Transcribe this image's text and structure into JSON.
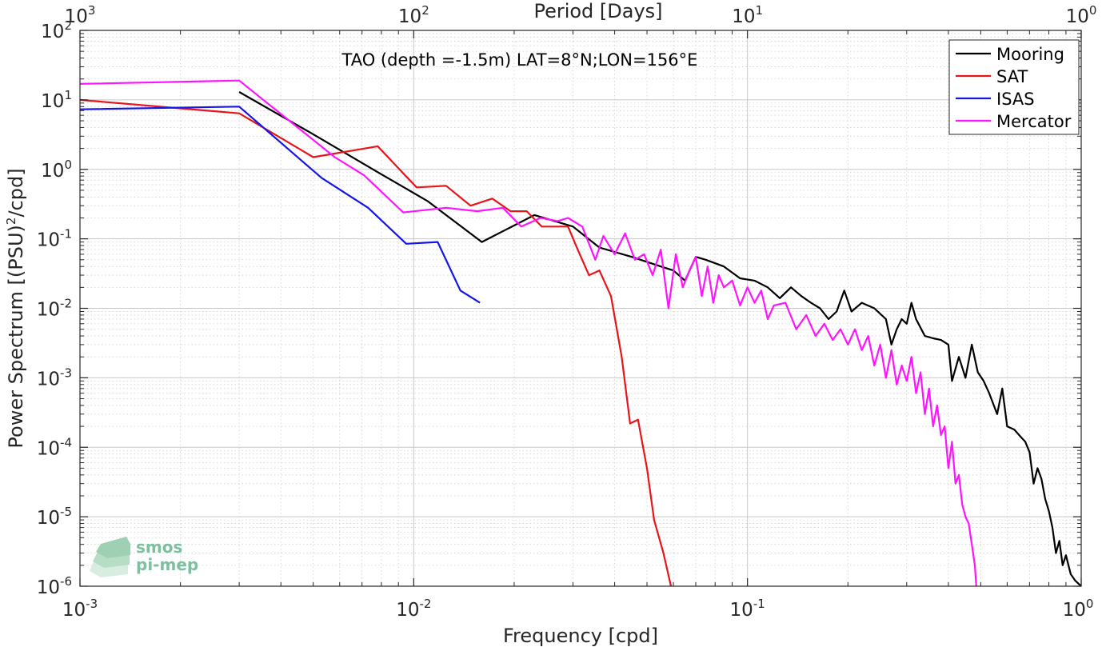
{
  "chart_data": {
    "type": "line",
    "title": "TAO (depth =-1.5m) LAT=8°N;LON=156°E",
    "xlabel": "Frequency [cpd]",
    "ylabel": "Power Spectrum [(PSU)²/cpd]",
    "ylabel_parts": {
      "pre": "Power Spectrum [(PSU)",
      "sup": "2",
      "post": "/cpd]"
    },
    "top_xlabel": "Period [Days]",
    "xscale": "log",
    "yscale": "log",
    "xlim": [
      0.001,
      1
    ],
    "ylim": [
      1e-06,
      100
    ],
    "grid": true,
    "legend_location": "top-right",
    "x_ticks": [
      {
        "v": 0.001,
        "base": "10",
        "exp": "-3"
      },
      {
        "v": 0.01,
        "base": "10",
        "exp": "-2"
      },
      {
        "v": 0.1,
        "base": "10",
        "exp": "-1"
      },
      {
        "v": 1,
        "base": "10",
        "exp": "0"
      }
    ],
    "y_ticks": [
      {
        "v": 100,
        "base": "10",
        "exp": "2"
      },
      {
        "v": 10,
        "base": "10",
        "exp": "1"
      },
      {
        "v": 1,
        "base": "10",
        "exp": "0"
      },
      {
        "v": 0.1,
        "base": "10",
        "exp": "-1"
      },
      {
        "v": 0.01,
        "base": "10",
        "exp": "-2"
      },
      {
        "v": 0.001,
        "base": "10",
        "exp": "-3"
      },
      {
        "v": 0.0001,
        "base": "10",
        "exp": "-4"
      },
      {
        "v": 1e-05,
        "base": "10",
        "exp": "-5"
      },
      {
        "v": 1e-06,
        "base": "10",
        "exp": "-6"
      }
    ],
    "top_ticks": [
      {
        "v": 1000,
        "base": "10",
        "exp": "3"
      },
      {
        "v": 100,
        "base": "10",
        "exp": "2"
      },
      {
        "v": 10,
        "base": "10",
        "exp": "1"
      },
      {
        "v": 1,
        "base": "10",
        "exp": "0"
      }
    ],
    "series": [
      {
        "name": "Mooring",
        "color": "#000000",
        "points": [
          [
            0.003,
            13
          ],
          [
            0.005,
            3.2
          ],
          [
            0.008,
            0.85
          ],
          [
            0.011,
            0.35
          ],
          [
            0.016,
            0.09
          ],
          [
            0.023,
            0.22
          ],
          [
            0.03,
            0.15
          ],
          [
            0.036,
            0.075
          ],
          [
            0.045,
            0.055
          ],
          [
            0.055,
            0.04
          ],
          [
            0.06,
            0.035
          ],
          [
            0.065,
            0.025
          ],
          [
            0.07,
            0.055
          ],
          [
            0.075,
            0.05
          ],
          [
            0.085,
            0.04
          ],
          [
            0.095,
            0.027
          ],
          [
            0.105,
            0.025
          ],
          [
            0.115,
            0.02
          ],
          [
            0.125,
            0.014
          ],
          [
            0.135,
            0.02
          ],
          [
            0.145,
            0.015
          ],
          [
            0.155,
            0.012
          ],
          [
            0.165,
            0.01
          ],
          [
            0.175,
            0.007
          ],
          [
            0.185,
            0.009
          ],
          [
            0.195,
            0.018
          ],
          [
            0.205,
            0.009
          ],
          [
            0.22,
            0.012
          ],
          [
            0.24,
            0.01
          ],
          [
            0.26,
            0.007
          ],
          [
            0.27,
            0.003
          ],
          [
            0.28,
            0.005
          ],
          [
            0.29,
            0.007
          ],
          [
            0.3,
            0.006
          ],
          [
            0.31,
            0.012
          ],
          [
            0.32,
            0.007
          ],
          [
            0.34,
            0.004
          ],
          [
            0.36,
            0.0037
          ],
          [
            0.38,
            0.0035
          ],
          [
            0.4,
            0.003
          ],
          [
            0.41,
            0.0009
          ],
          [
            0.43,
            0.002
          ],
          [
            0.45,
            0.001
          ],
          [
            0.47,
            0.003
          ],
          [
            0.49,
            0.0012
          ],
          [
            0.51,
            0.0009
          ],
          [
            0.53,
            0.0006
          ],
          [
            0.56,
            0.0003
          ],
          [
            0.58,
            0.0007
          ],
          [
            0.6,
            0.0002
          ],
          [
            0.63,
            0.00018
          ],
          [
            0.66,
            0.00014
          ],
          [
            0.68,
            0.00012
          ],
          [
            0.7,
            8.5e-05
          ],
          [
            0.72,
            3e-05
          ],
          [
            0.74,
            5e-05
          ],
          [
            0.76,
            3.5e-05
          ],
          [
            0.78,
            1.8e-05
          ],
          [
            0.8,
            1.2e-05
          ],
          [
            0.82,
            7e-06
          ],
          [
            0.84,
            3e-06
          ],
          [
            0.86,
            4.5e-06
          ],
          [
            0.88,
            2e-06
          ],
          [
            0.9,
            2.8e-06
          ],
          [
            0.93,
            1.5e-06
          ],
          [
            0.96,
            1.2e-06
          ],
          [
            1.0,
            1e-06
          ]
        ]
      },
      {
        "name": "SAT",
        "color": "#e8141a",
        "points": [
          [
            0.001,
            10
          ],
          [
            0.003,
            6.4
          ],
          [
            0.005,
            1.5
          ],
          [
            0.0078,
            2.15
          ],
          [
            0.0102,
            0.55
          ],
          [
            0.0125,
            0.58
          ],
          [
            0.0148,
            0.3
          ],
          [
            0.0172,
            0.38
          ],
          [
            0.0195,
            0.25
          ],
          [
            0.0218,
            0.25
          ],
          [
            0.0242,
            0.15
          ],
          [
            0.0265,
            0.15
          ],
          [
            0.029,
            0.15
          ],
          [
            0.031,
            0.07
          ],
          [
            0.0335,
            0.03
          ],
          [
            0.036,
            0.035
          ],
          [
            0.039,
            0.015
          ],
          [
            0.042,
            0.002
          ],
          [
            0.0445,
            0.00022
          ],
          [
            0.047,
            0.00025
          ],
          [
            0.05,
            5e-05
          ],
          [
            0.0525,
            9e-06
          ],
          [
            0.056,
            3e-06
          ],
          [
            0.059,
            1e-06
          ]
        ]
      },
      {
        "name": "ISAS",
        "color": "#1515e8",
        "points": [
          [
            0.001,
            7.3
          ],
          [
            0.003,
            8
          ],
          [
            0.0053,
            0.75
          ],
          [
            0.0073,
            0.28
          ],
          [
            0.0095,
            0.085
          ],
          [
            0.0118,
            0.09
          ],
          [
            0.0138,
            0.018
          ],
          [
            0.0158,
            0.012
          ]
        ]
      },
      {
        "name": "Mercator",
        "color": "#ff14ff",
        "points": [
          [
            0.001,
            17
          ],
          [
            0.003,
            19
          ],
          [
            0.0058,
            1.5
          ],
          [
            0.0071,
            0.82
          ],
          [
            0.0093,
            0.24
          ],
          [
            0.0125,
            0.28
          ],
          [
            0.0155,
            0.25
          ],
          [
            0.0185,
            0.28
          ],
          [
            0.021,
            0.15
          ],
          [
            0.024,
            0.2
          ],
          [
            0.027,
            0.18
          ],
          [
            0.029,
            0.2
          ],
          [
            0.032,
            0.15
          ],
          [
            0.035,
            0.05
          ],
          [
            0.037,
            0.11
          ],
          [
            0.04,
            0.06
          ],
          [
            0.043,
            0.12
          ],
          [
            0.046,
            0.05
          ],
          [
            0.049,
            0.06
          ],
          [
            0.052,
            0.03
          ],
          [
            0.055,
            0.07
          ],
          [
            0.058,
            0.01
          ],
          [
            0.061,
            0.06
          ],
          [
            0.064,
            0.02
          ],
          [
            0.067,
            0.035
          ],
          [
            0.07,
            0.055
          ],
          [
            0.073,
            0.015
          ],
          [
            0.076,
            0.04
          ],
          [
            0.079,
            0.012
          ],
          [
            0.082,
            0.03
          ],
          [
            0.085,
            0.02
          ],
          [
            0.09,
            0.025
          ],
          [
            0.095,
            0.011
          ],
          [
            0.1,
            0.02
          ],
          [
            0.105,
            0.012
          ],
          [
            0.11,
            0.018
          ],
          [
            0.115,
            0.007
          ],
          [
            0.12,
            0.011
          ],
          [
            0.13,
            0.012
          ],
          [
            0.14,
            0.005
          ],
          [
            0.15,
            0.008
          ],
          [
            0.16,
            0.004
          ],
          [
            0.17,
            0.006
          ],
          [
            0.18,
            0.0035
          ],
          [
            0.19,
            0.005
          ],
          [
            0.2,
            0.003
          ],
          [
            0.21,
            0.005
          ],
          [
            0.22,
            0.0025
          ],
          [
            0.23,
            0.004
          ],
          [
            0.24,
            0.0015
          ],
          [
            0.25,
            0.003
          ],
          [
            0.26,
            0.001
          ],
          [
            0.27,
            0.0025
          ],
          [
            0.28,
            0.0008
          ],
          [
            0.29,
            0.0015
          ],
          [
            0.3,
            0.0009
          ],
          [
            0.31,
            0.002
          ],
          [
            0.32,
            0.0006
          ],
          [
            0.33,
            0.0012
          ],
          [
            0.34,
            0.0003
          ],
          [
            0.35,
            0.0007
          ],
          [
            0.36,
            0.0002
          ],
          [
            0.37,
            0.0004
          ],
          [
            0.38,
            0.00015
          ],
          [
            0.39,
            0.0002
          ],
          [
            0.4,
            5e-05
          ],
          [
            0.41,
            0.00012
          ],
          [
            0.42,
            3e-05
          ],
          [
            0.43,
            4e-05
          ],
          [
            0.44,
            1.5e-05
          ],
          [
            0.45,
            1e-05
          ],
          [
            0.46,
            8e-06
          ],
          [
            0.47,
            4e-06
          ],
          [
            0.48,
            2e-06
          ],
          [
            0.485,
            1e-06
          ]
        ]
      }
    ]
  },
  "logo": {
    "line1": "smos",
    "line2": "pi-mep"
  }
}
